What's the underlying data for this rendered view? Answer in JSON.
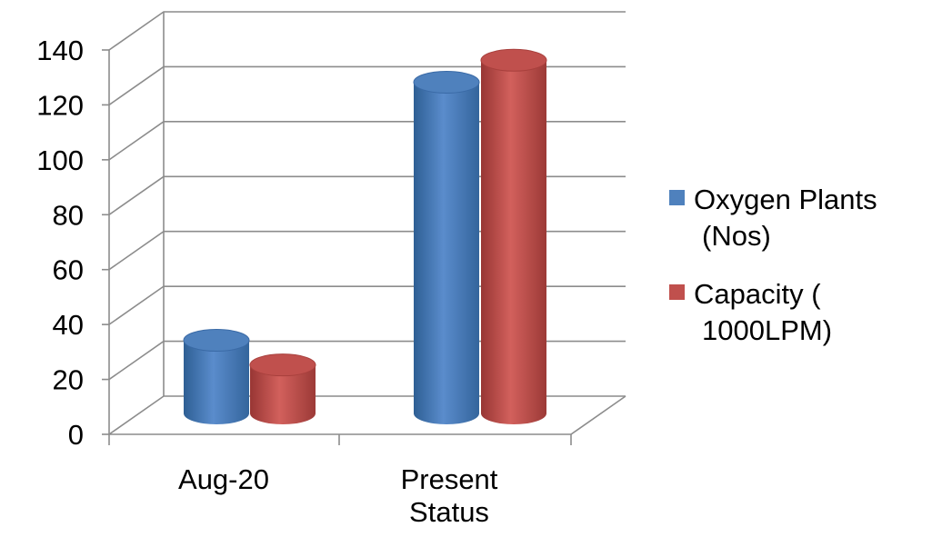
{
  "chart_data": {
    "type": "bar",
    "style": "3d-cylinder",
    "categories": [
      [
        "Aug-20"
      ],
      [
        "Present",
        "Status"
      ]
    ],
    "series": [
      {
        "name": [
          "Oxygen Plants",
          "(Nos)"
        ],
        "values": [
          24,
          118
        ],
        "color": "#4f81bd"
      },
      {
        "name": [
          "Capacity  (",
          "1000LPM)"
        ],
        "values": [
          15,
          126
        ],
        "color": "#c0504d"
      }
    ],
    "ylim": [
      0,
      140
    ],
    "yticks": [
      "0",
      "20",
      "40",
      "60",
      "80",
      "100",
      "120",
      "140"
    ],
    "grid": true,
    "legend": "right"
  }
}
